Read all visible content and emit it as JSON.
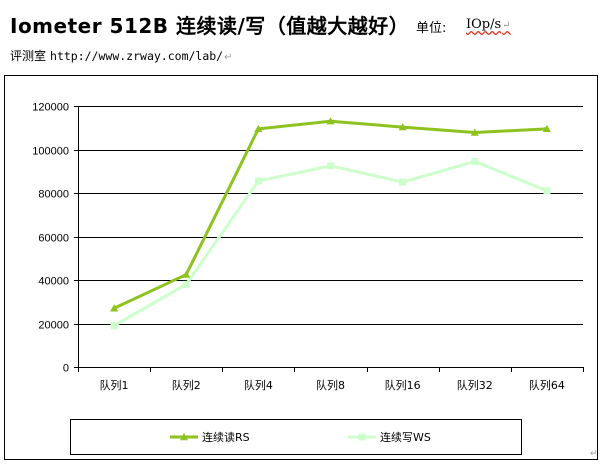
{
  "header": {
    "title": "Iometer 512B 连续读/写（值越大越好）",
    "unit_label": "单位:",
    "unit_value": "IOp/s",
    "source_label": "评测室",
    "source_url": "http://www.zrway.com/lab/"
  },
  "chart_data": {
    "type": "line",
    "categories": [
      "队列1",
      "队列2",
      "队列4",
      "队列8",
      "队列16",
      "队列32",
      "队列64"
    ],
    "series": [
      {
        "name": "连续读RS",
        "color": "#8dc21f",
        "marker": "triangle",
        "values": [
          27000,
          42500,
          109500,
          113000,
          110300,
          107800,
          109500
        ]
      },
      {
        "name": "连续写WS",
        "color": "#ccffcc",
        "marker": "square",
        "values": [
          19000,
          38000,
          85500,
          92500,
          85000,
          94500,
          81000
        ]
      }
    ],
    "ylim": [
      0,
      120000
    ],
    "yticks": [
      0,
      20000,
      40000,
      60000,
      80000,
      100000,
      120000
    ],
    "grid": true,
    "legend_position": "bottom"
  }
}
